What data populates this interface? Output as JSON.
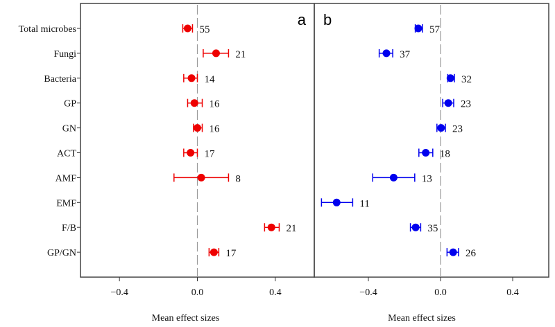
{
  "chart_data": {
    "type": "forest",
    "xlabel": "Mean effect sizes",
    "categories": [
      "Total microbes",
      "Fungi",
      "Bacteria",
      "GP",
      "GN",
      "ACT",
      "AMF",
      "EMF",
      "F/B",
      "GP/GN"
    ],
    "panels": [
      {
        "label": "a",
        "color": "#ee0000",
        "xlim": [
          -0.6,
          0.6
        ],
        "ticks": [
          -0.4,
          0.0,
          0.4
        ],
        "tick_labels": [
          "−0.4",
          "0.0",
          "0.4"
        ],
        "points": [
          {
            "category": "Total microbes",
            "mean": -0.05,
            "lo": -0.075,
            "hi": -0.025,
            "n": "55"
          },
          {
            "category": "Fungi",
            "mean": 0.096,
            "lo": 0.03,
            "hi": 0.16,
            "n": "21"
          },
          {
            "category": "Bacteria",
            "mean": -0.03,
            "lo": -0.07,
            "hi": 0.0,
            "n": "14"
          },
          {
            "category": "GP",
            "mean": -0.015,
            "lo": -0.05,
            "hi": 0.025,
            "n": "16"
          },
          {
            "category": "GN",
            "mean": 0.0,
            "lo": -0.02,
            "hi": 0.025,
            "n": "16"
          },
          {
            "category": "ACT",
            "mean": -0.035,
            "lo": -0.07,
            "hi": 0.0,
            "n": "17"
          },
          {
            "category": "AMF",
            "mean": 0.02,
            "lo": -0.12,
            "hi": 0.16,
            "n": "8"
          },
          null,
          {
            "category": "F/B",
            "mean": 0.38,
            "lo": 0.345,
            "hi": 0.42,
            "n": "21"
          },
          {
            "category": "GP/GN",
            "mean": 0.085,
            "lo": 0.06,
            "hi": 0.11,
            "n": "17"
          }
        ]
      },
      {
        "label": "b",
        "color": "#0000ee",
        "xlim": [
          -0.7,
          0.6
        ],
        "ticks": [
          -0.4,
          0.0,
          0.4
        ],
        "tick_labels": [
          "−0.4",
          "0.0",
          "0.4"
        ],
        "points": [
          {
            "category": "Total microbes",
            "mean": -0.123,
            "lo": -0.14,
            "hi": -0.1,
            "n": "57"
          },
          {
            "category": "Fungi",
            "mean": -0.3,
            "lo": -0.34,
            "hi": -0.265,
            "n": "37"
          },
          {
            "category": "Bacteria",
            "mean": 0.055,
            "lo": 0.04,
            "hi": 0.077,
            "n": "32"
          },
          {
            "category": "GP",
            "mean": 0.043,
            "lo": 0.012,
            "hi": 0.073,
            "n": "23"
          },
          {
            "category": "GN",
            "mean": 0.003,
            "lo": -0.02,
            "hi": 0.027,
            "n": "23"
          },
          {
            "category": "ACT",
            "mean": -0.082,
            "lo": -0.12,
            "hi": -0.043,
            "n": "18"
          },
          {
            "category": "AMF",
            "mean": -0.26,
            "lo": -0.376,
            "hi": -0.143,
            "n": "13"
          },
          {
            "category": "EMF",
            "mean": -0.576,
            "lo": -0.66,
            "hi": -0.487,
            "n": "11"
          },
          {
            "category": "F/B",
            "mean": -0.138,
            "lo": -0.167,
            "hi": -0.11,
            "n": "35"
          },
          {
            "category": "GP/GN",
            "mean": 0.07,
            "lo": 0.036,
            "hi": 0.1,
            "n": "26"
          }
        ]
      }
    ]
  }
}
